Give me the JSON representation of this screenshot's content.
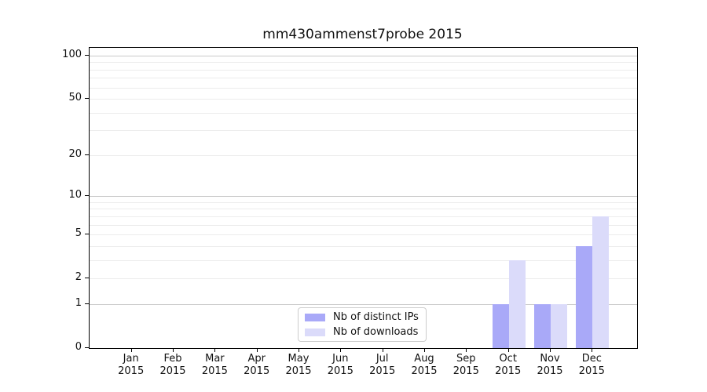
{
  "chart_data": {
    "type": "bar",
    "title": "mm430ammenst7probe 2015",
    "months": [
      "Jan",
      "Feb",
      "Mar",
      "Apr",
      "May",
      "Jun",
      "Jul",
      "Aug",
      "Sep",
      "Oct",
      "Nov",
      "Dec"
    ],
    "year_label": "2015",
    "categories": [
      "Jan 2015",
      "Feb 2015",
      "Mar 2015",
      "Apr 2015",
      "May 2015",
      "Jun 2015",
      "Jul 2015",
      "Aug 2015",
      "Sep 2015",
      "Oct 2015",
      "Nov 2015",
      "Dec 2015"
    ],
    "series": [
      {
        "name": "Nb of distinct IPs",
        "color": "#a9a9f8",
        "values": [
          0,
          0,
          0,
          0,
          0,
          0,
          0,
          0,
          0,
          1,
          1,
          4
        ]
      },
      {
        "name": "Nb of downloads",
        "color": "#dbdbfa",
        "values": [
          0,
          0,
          0,
          0,
          0,
          0,
          0,
          0,
          0,
          3,
          1,
          7
        ]
      }
    ],
    "y_ticks": [
      0,
      1,
      2,
      5,
      10,
      20,
      50,
      100
    ],
    "y_scale": "log1p",
    "y_axis_top": 113,
    "ylim": [
      0,
      113
    ],
    "grid": true,
    "grid_major_values": [
      1,
      10,
      100
    ],
    "grid_minor_values": [
      2,
      3,
      4,
      5,
      6,
      7,
      8,
      9,
      20,
      30,
      40,
      50,
      60,
      70,
      80,
      90
    ],
    "legend_position": "lower-center-inside",
    "colors": {
      "grid_major": "#c9c9c9",
      "grid_minor": "#ececec",
      "axis": "#000000",
      "background": "#ffffff"
    }
  }
}
